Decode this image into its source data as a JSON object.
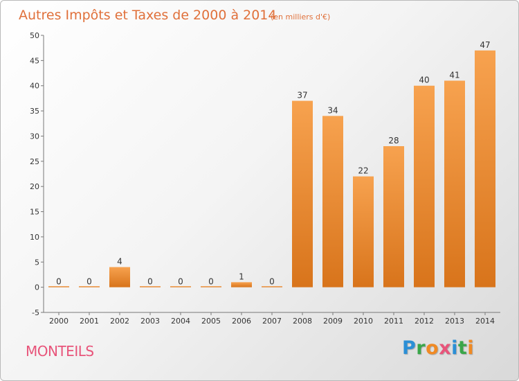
{
  "title": "Autres Impôts et Taxes de 2000 à 2014",
  "subtitle": "(en milliers d'€)",
  "place": "MONTEILS",
  "logo": {
    "text": "Proxiti",
    "letters": [
      {
        "ch": "P",
        "color": "#2b8fd6"
      },
      {
        "ch": "r",
        "color": "#3aa64a"
      },
      {
        "ch": "o",
        "color": "#f08a24"
      },
      {
        "ch": "x",
        "color": "#e8547a"
      },
      {
        "ch": "i",
        "color": "#2b8fd6"
      },
      {
        "ch": "t",
        "color": "#3aa64a"
      },
      {
        "ch": "i",
        "color": "#f08a24"
      }
    ]
  },
  "colors": {
    "bar_light": "#f7a24f",
    "bar_dark": "#d8741b",
    "title": "#e0703a",
    "place": "#e8547a"
  },
  "chart_data": {
    "type": "bar",
    "title": "Autres Impôts et Taxes de 2000 à 2014",
    "subtitle": "(en milliers d'€)",
    "categories": [
      "2000",
      "2001",
      "2002",
      "2003",
      "2004",
      "2005",
      "2006",
      "2007",
      "2008",
      "2009",
      "2010",
      "2011",
      "2012",
      "2013",
      "2014"
    ],
    "values": [
      0,
      0,
      4,
      0,
      0,
      0,
      1,
      0,
      37,
      34,
      22,
      28,
      40,
      41,
      47
    ],
    "ylim": [
      -5,
      50
    ],
    "yticks": [
      -5,
      0,
      5,
      10,
      15,
      20,
      25,
      30,
      35,
      40,
      45,
      50
    ],
    "grid": false,
    "xlabel": "",
    "ylabel": ""
  }
}
